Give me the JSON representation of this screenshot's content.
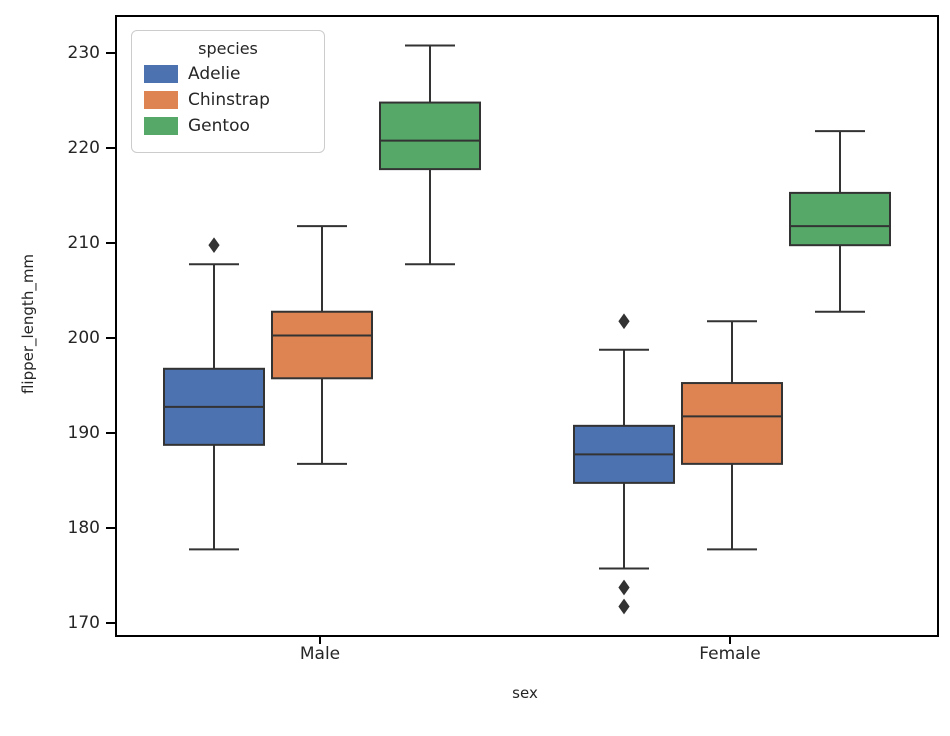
{
  "chart_data": {
    "type": "boxplot",
    "title": "",
    "xlabel": "sex",
    "ylabel": "flipper_length_mm",
    "categories": [
      "Male",
      "Female"
    ],
    "ylim": [
      169,
      234
    ],
    "yticks": [
      170,
      180,
      190,
      200,
      210,
      220,
      230
    ],
    "grid": false,
    "edge_color": "#333333",
    "legend": {
      "title": "species",
      "position": "upper left"
    },
    "series": [
      {
        "name": "Adelie",
        "color": "#4C72B0",
        "boxes": [
          {
            "category": "Male",
            "whisker_low": 178,
            "q1": 189,
            "median": 193,
            "q3": 197,
            "whisker_high": 208,
            "outliers": [
              210
            ]
          },
          {
            "category": "Female",
            "whisker_low": 176,
            "q1": 185,
            "median": 188,
            "q3": 191,
            "whisker_high": 199,
            "outliers": [
              202,
              174,
              172
            ]
          }
        ]
      },
      {
        "name": "Chinstrap",
        "color": "#DD8452",
        "boxes": [
          {
            "category": "Male",
            "whisker_low": 187,
            "q1": 196,
            "median": 200.5,
            "q3": 203,
            "whisker_high": 212,
            "outliers": []
          },
          {
            "category": "Female",
            "whisker_low": 178,
            "q1": 187,
            "median": 192,
            "q3": 195.5,
            "whisker_high": 202,
            "outliers": []
          }
        ]
      },
      {
        "name": "Gentoo",
        "color": "#55A868",
        "boxes": [
          {
            "category": "Male",
            "whisker_low": 208,
            "q1": 218,
            "median": 221,
            "q3": 225,
            "whisker_high": 231,
            "outliers": []
          },
          {
            "category": "Female",
            "whisker_low": 203,
            "q1": 210,
            "median": 212,
            "q3": 215.5,
            "whisker_high": 222,
            "outliers": []
          }
        ]
      }
    ]
  }
}
